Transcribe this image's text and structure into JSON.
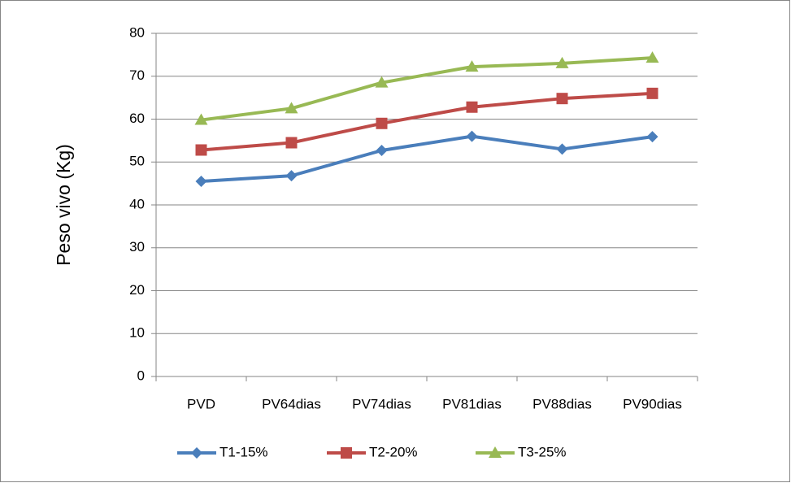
{
  "chart_data": {
    "type": "line",
    "y_label": "Peso vivo (Kg)",
    "categories": [
      "PVD",
      "PV64dias",
      "PV74dias",
      "PV81dias",
      "PV88dias",
      "PV90dias"
    ],
    "series": [
      {
        "name": "T1-15%",
        "color": "#4a7ebb",
        "marker": "diamond",
        "values": [
          45.5,
          46.8,
          52.7,
          56,
          53,
          55.9
        ]
      },
      {
        "name": "T2-20%",
        "color": "#be4b48",
        "marker": "square",
        "values": [
          52.8,
          54.5,
          59,
          62.8,
          64.8,
          66
        ]
      },
      {
        "name": "T3-25%",
        "color": "#98b954",
        "marker": "triangle",
        "values": [
          59.8,
          62.5,
          68.5,
          72.2,
          73,
          74.3
        ]
      }
    ],
    "ylim": [
      0,
      80
    ],
    "yticks": [
      0,
      10,
      20,
      30,
      40,
      50,
      60,
      70,
      80
    ],
    "grid": true,
    "legend": "bottom"
  }
}
